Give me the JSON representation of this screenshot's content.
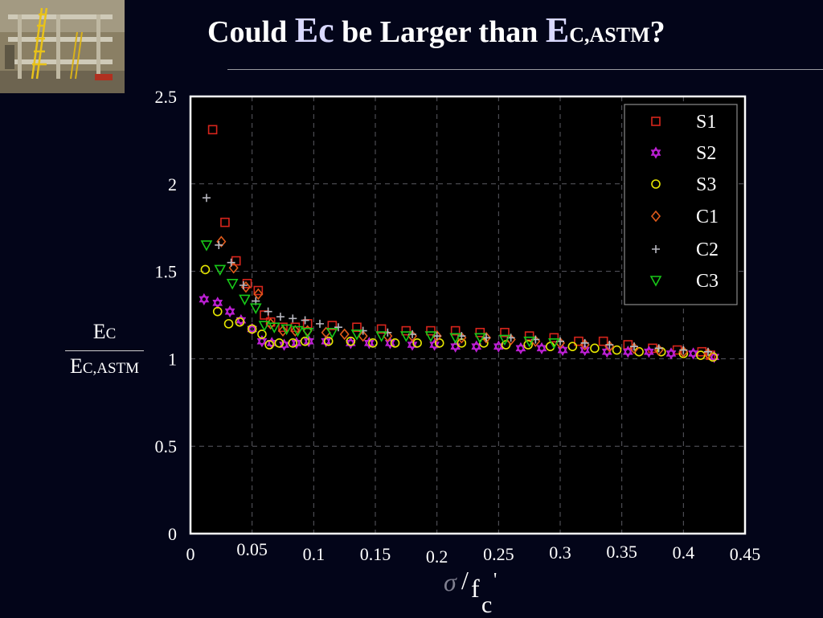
{
  "slide": {
    "title_prefix": "Could ",
    "title_ec": "Ec",
    "title_middle": " be Larger than ",
    "title_e": "E",
    "title_sub": "C,ASTM",
    "title_suffix": "?",
    "photo_icon": "building-test-structure-photo"
  },
  "axis_text": {
    "y_num_main": "E",
    "y_num_sub": "C",
    "y_den_main": "E",
    "y_den_sub": "C,ASTM",
    "x_sigma": "σ",
    "x_slash": "/",
    "x_f": "f",
    "x_prime": "'",
    "x_sub": "c"
  },
  "colors": {
    "background": "#030519",
    "plot_background": "#000000",
    "S1": "#d8251c",
    "S2": "#c020d8",
    "S3": "#e6e600",
    "C1": "#e05a1a",
    "C2": "#b8b8c0",
    "C3": "#18c818"
  },
  "chart_data": {
    "type": "scatter",
    "xlim": [
      0,
      0.45
    ],
    "ylim": [
      0,
      2.5
    ],
    "x_ticks": [
      "0",
      "0.05",
      "0.1",
      "0.15",
      "0.2",
      "0.25",
      "0.3",
      "0.35",
      "0.4",
      "0.45"
    ],
    "y_ticks": [
      "0",
      "0.5",
      "1",
      "1.5",
      "2",
      "2.5"
    ],
    "grid": true,
    "legend_position": "top-right",
    "series": [
      {
        "name": "S1",
        "marker": "square",
        "x": [
          0.018,
          0.028,
          0.037,
          0.046,
          0.055,
          0.06,
          0.065,
          0.075,
          0.085,
          0.095,
          0.115,
          0.135,
          0.155,
          0.175,
          0.195,
          0.215,
          0.235,
          0.255,
          0.275,
          0.295,
          0.315,
          0.335,
          0.355,
          0.375,
          0.395,
          0.415,
          0.422
        ],
        "y": [
          2.31,
          1.78,
          1.56,
          1.43,
          1.39,
          1.25,
          1.21,
          1.18,
          1.18,
          1.2,
          1.19,
          1.18,
          1.17,
          1.16,
          1.16,
          1.16,
          1.15,
          1.15,
          1.13,
          1.12,
          1.1,
          1.1,
          1.08,
          1.06,
          1.05,
          1.04,
          1.02
        ]
      },
      {
        "name": "S2",
        "marker": "star",
        "x": [
          0.011,
          0.022,
          0.032,
          0.041,
          0.05,
          0.058,
          0.066,
          0.076,
          0.086,
          0.096,
          0.11,
          0.13,
          0.145,
          0.162,
          0.18,
          0.198,
          0.215,
          0.232,
          0.25,
          0.268,
          0.285,
          0.302,
          0.32,
          0.338,
          0.355,
          0.372,
          0.39,
          0.408,
          0.425
        ],
        "y": [
          1.34,
          1.32,
          1.27,
          1.22,
          1.17,
          1.1,
          1.09,
          1.08,
          1.09,
          1.1,
          1.1,
          1.09,
          1.09,
          1.09,
          1.08,
          1.08,
          1.07,
          1.07,
          1.07,
          1.06,
          1.06,
          1.05,
          1.05,
          1.04,
          1.04,
          1.04,
          1.03,
          1.03,
          1.01
        ]
      },
      {
        "name": "S3",
        "marker": "circle",
        "x": [
          0.012,
          0.022,
          0.031,
          0.04,
          0.05,
          0.058,
          0.064,
          0.072,
          0.083,
          0.093,
          0.112,
          0.13,
          0.148,
          0.166,
          0.184,
          0.202,
          0.22,
          0.238,
          0.256,
          0.274,
          0.292,
          0.31,
          0.328,
          0.346,
          0.364,
          0.382,
          0.4,
          0.414,
          0.424
        ],
        "y": [
          1.51,
          1.27,
          1.2,
          1.21,
          1.17,
          1.14,
          1.08,
          1.09,
          1.09,
          1.1,
          1.1,
          1.1,
          1.09,
          1.09,
          1.09,
          1.09,
          1.09,
          1.09,
          1.08,
          1.08,
          1.07,
          1.07,
          1.06,
          1.05,
          1.04,
          1.04,
          1.03,
          1.02,
          1.01
        ]
      },
      {
        "name": "C1",
        "marker": "diamond",
        "x": [
          0.025,
          0.035,
          0.045,
          0.055,
          0.065,
          0.075,
          0.085,
          0.095,
          0.11,
          0.125,
          0.14,
          0.16,
          0.18,
          0.2,
          0.22,
          0.24,
          0.26,
          0.28,
          0.3,
          0.32,
          0.34,
          0.36,
          0.38,
          0.4,
          0.42
        ],
        "y": [
          1.67,
          1.52,
          1.41,
          1.37,
          1.2,
          1.16,
          1.16,
          1.16,
          1.15,
          1.14,
          1.13,
          1.13,
          1.13,
          1.13,
          1.12,
          1.12,
          1.11,
          1.1,
          1.09,
          1.08,
          1.07,
          1.06,
          1.05,
          1.04,
          1.03
        ]
      },
      {
        "name": "C2",
        "marker": "plus",
        "x": [
          0.013,
          0.023,
          0.033,
          0.043,
          0.053,
          0.063,
          0.073,
          0.083,
          0.093,
          0.105,
          0.12,
          0.14,
          0.16,
          0.18,
          0.2,
          0.22,
          0.24,
          0.26,
          0.28,
          0.3,
          0.32,
          0.34,
          0.36,
          0.38,
          0.4,
          0.42
        ],
        "y": [
          1.92,
          1.65,
          1.55,
          1.42,
          1.33,
          1.27,
          1.24,
          1.23,
          1.22,
          1.2,
          1.18,
          1.16,
          1.15,
          1.14,
          1.13,
          1.13,
          1.12,
          1.12,
          1.11,
          1.1,
          1.09,
          1.08,
          1.07,
          1.06,
          1.05,
          1.04
        ]
      },
      {
        "name": "C3",
        "marker": "triangle-down",
        "x": [
          0.013,
          0.024,
          0.034,
          0.044,
          0.053,
          0.06,
          0.068,
          0.078,
          0.087,
          0.095,
          0.115,
          0.135,
          0.155,
          0.175,
          0.195,
          0.215,
          0.235,
          0.255,
          0.275,
          0.295
        ],
        "y": [
          1.65,
          1.51,
          1.43,
          1.34,
          1.29,
          1.19,
          1.18,
          1.17,
          1.16,
          1.15,
          1.15,
          1.14,
          1.13,
          1.13,
          1.13,
          1.12,
          1.12,
          1.11,
          1.1,
          1.09
        ]
      }
    ]
  }
}
